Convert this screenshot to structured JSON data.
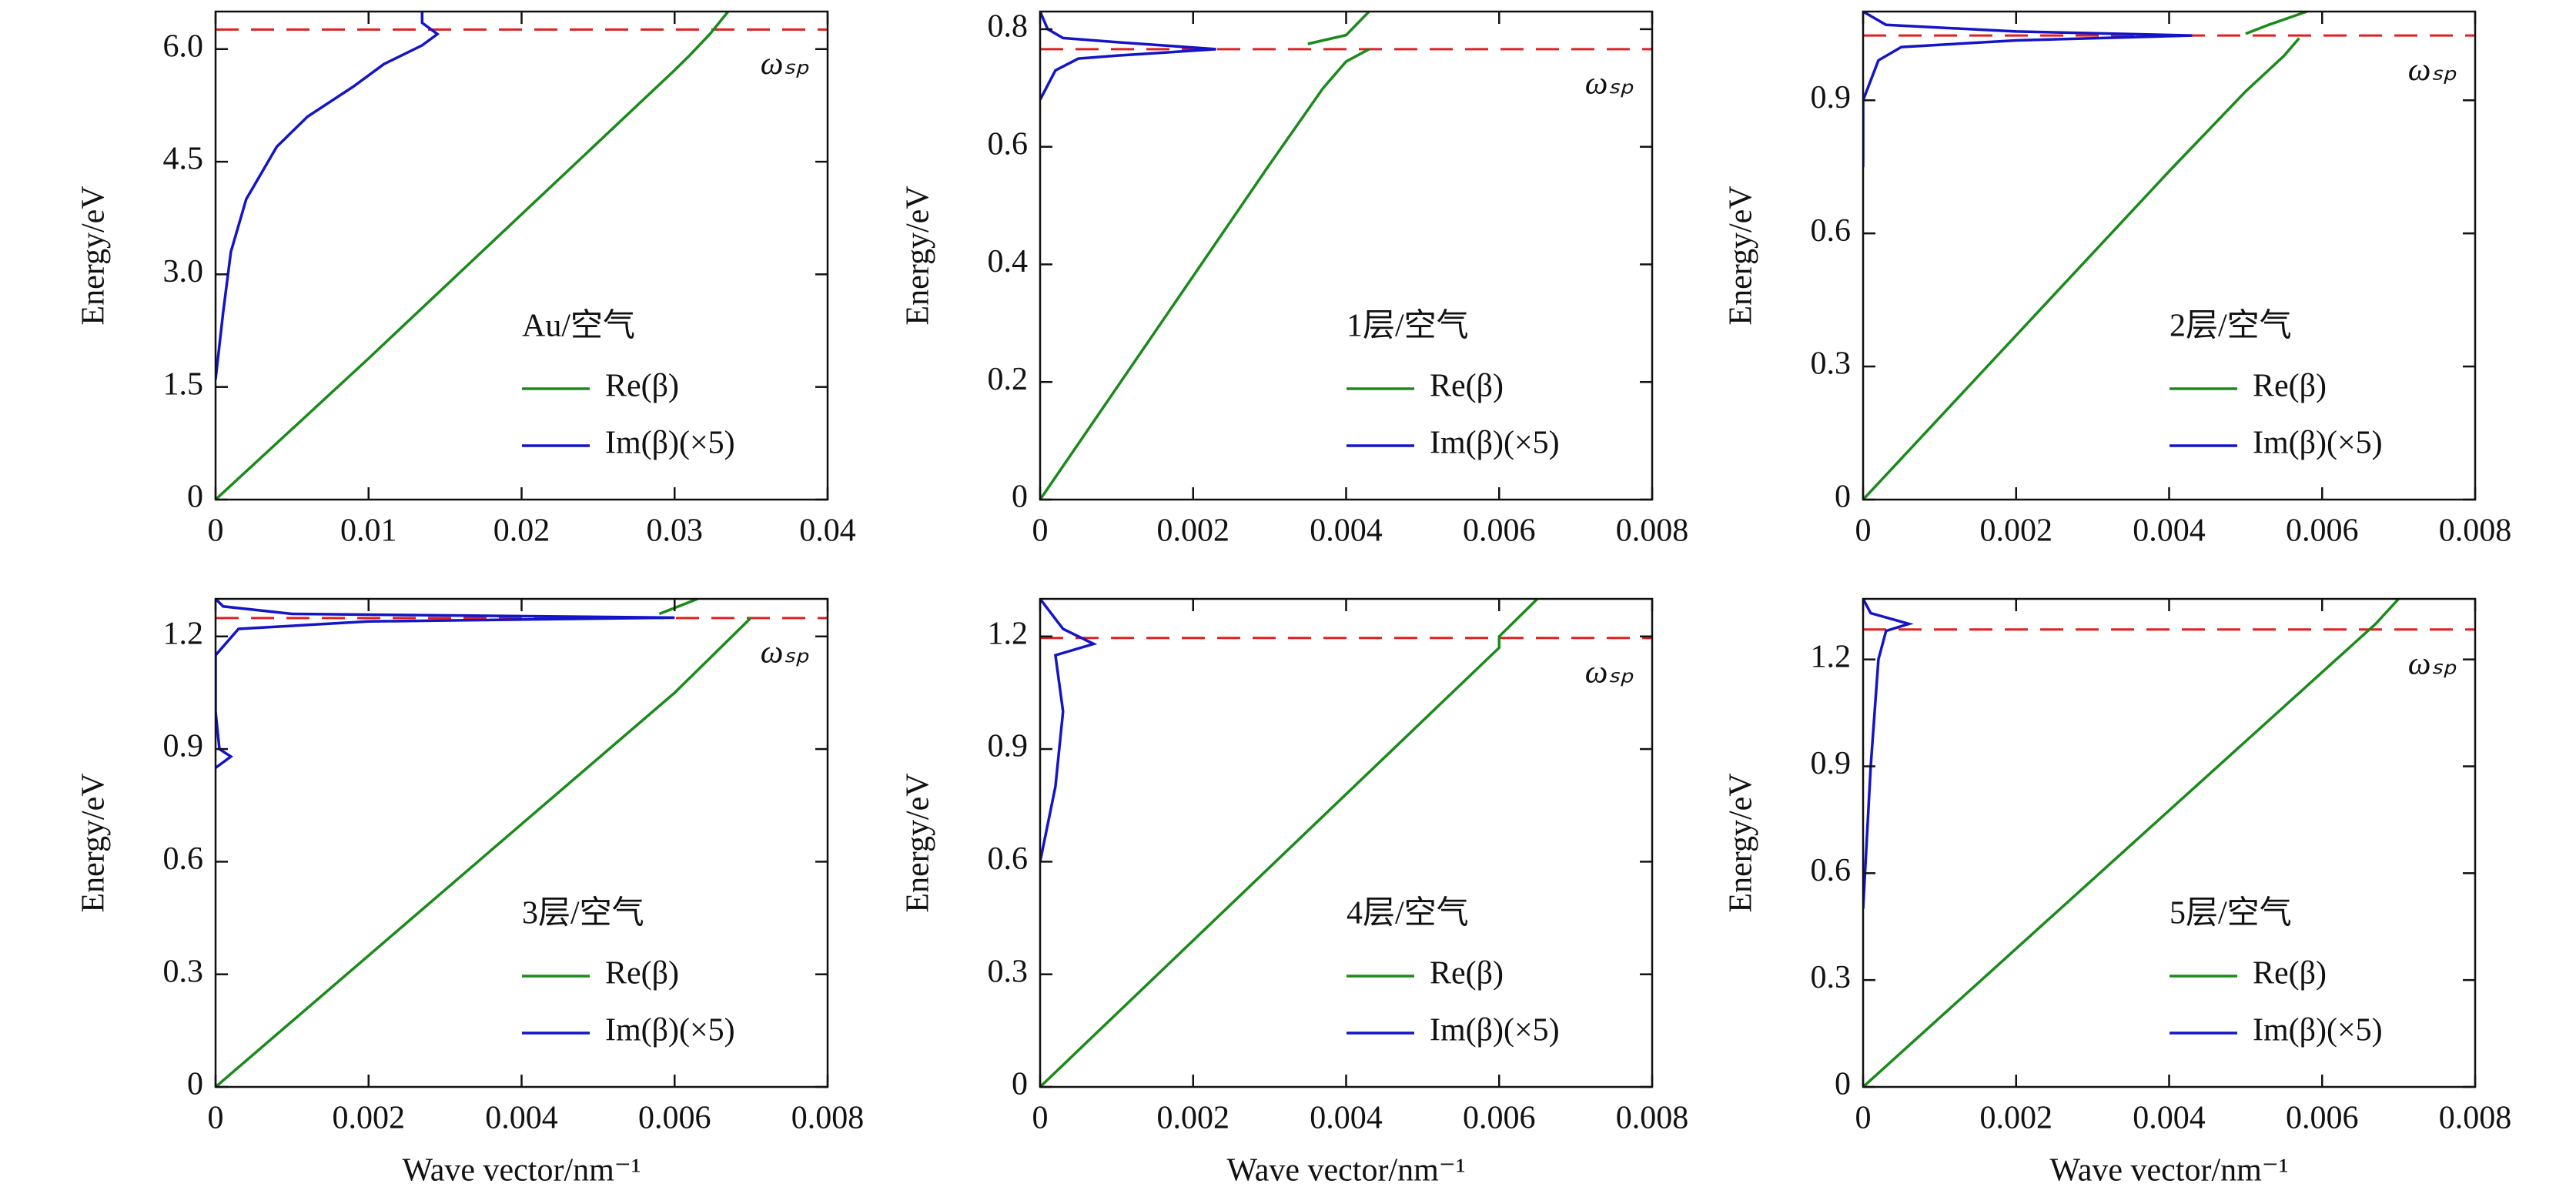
{
  "chart_data": [
    {
      "type": "line",
      "annotation": "Au/空气",
      "ylabel": "Energy/eV",
      "xlim": [
        0,
        0.04
      ],
      "xticks": [
        0,
        0.01,
        0.02,
        0.03,
        0.04
      ],
      "ylim": [
        0,
        6.5
      ],
      "yticks": [
        0,
        1.5,
        {
          "value": 3,
          "label": "3.0"
        },
        4.5,
        {
          "value": 6,
          "label": "6.0"
        }
      ],
      "reference_line": {
        "value": 6.26,
        "label": "ωₛₚ",
        "color": "#e02020"
      },
      "series": [
        {
          "name": "Re(β)",
          "color": "#1a8a1a",
          "x": [
            0,
            0.01,
            0.02,
            0.03,
            0.031,
            0.0323,
            0.0335
          ],
          "values": [
            0,
            1.88,
            3.8,
            5.72,
            5.92,
            6.2,
            6.5
          ]
        },
        {
          "name": "Im(β)(×5)",
          "color": "#1414c8",
          "x": [
            0,
            0.0005,
            0.001,
            0.002,
            0.004,
            0.006,
            0.009,
            0.011,
            0.0135,
            0.0145,
            0.0135,
            0.0135
          ],
          "values": [
            1.6,
            2.5,
            3.3,
            4.0,
            4.7,
            5.1,
            5.5,
            5.8,
            6.05,
            6.2,
            6.35,
            6.5
          ]
        }
      ]
    },
    {
      "type": "line",
      "annotation": "1层/空气",
      "ylabel": "Energy/eV",
      "xlim": [
        0,
        0.008
      ],
      "xticks": [
        0,
        0.002,
        0.004,
        0.006,
        0.008
      ],
      "ylim": [
        0,
        0.83
      ],
      "yticks": [
        0,
        0.2,
        0.4,
        0.6,
        0.8
      ],
      "reference_line": {
        "value": 0.766,
        "label": "ωₛₚ",
        "color": "#e02020"
      },
      "series": [
        {
          "name": "Re(β)",
          "color": "#1a8a1a",
          "x": [
            0,
            0.001,
            0.002,
            0.003,
            0.0037,
            0.004,
            0.0043,
            null,
            0.0035,
            0.004,
            0.0043
          ],
          "values": [
            0,
            0.19,
            0.38,
            0.57,
            0.7,
            0.745,
            0.766,
            null,
            0.775,
            0.79,
            0.83
          ]
        },
        {
          "name": "Im(β)(×5)",
          "color": "#1414c8",
          "x": [
            0,
            0.0002,
            0.0005,
            0.001,
            0.0023,
            0.001,
            0.0003,
            0.0001,
            0
          ],
          "values": [
            0.68,
            0.73,
            0.75,
            0.755,
            0.766,
            0.778,
            0.785,
            0.8,
            0.83
          ]
        }
      ]
    },
    {
      "type": "line",
      "annotation": "2层/空气",
      "ylabel": "Energy/eV",
      "xlim": [
        0,
        0.008
      ],
      "xticks": [
        0,
        0.002,
        0.004,
        0.006,
        0.008
      ],
      "ylim": [
        0,
        1.1
      ],
      "yticks": [
        0,
        0.3,
        0.6,
        0.9
      ],
      "reference_line": {
        "value": 1.046,
        "label": "ωₛₚ",
        "color": "#e02020"
      },
      "series": [
        {
          "name": "Re(β)",
          "color": "#1a8a1a",
          "x": [
            0,
            0.002,
            0.004,
            0.005,
            0.0055,
            0.0057,
            null,
            0.005,
            0.0053,
            0.0058
          ],
          "values": [
            0,
            0.37,
            0.74,
            0.92,
            1.0,
            1.04,
            null,
            1.05,
            1.07,
            1.1
          ]
        },
        {
          "name": "Im(β)(×5)",
          "color": "#1414c8",
          "x": [
            0,
            0,
            0.0002,
            0.0005,
            0.002,
            0.0043,
            0.002,
            0.0003,
            0
          ],
          "values": [
            0.75,
            0.9,
            0.99,
            1.02,
            1.035,
            1.046,
            1.055,
            1.07,
            1.1
          ]
        }
      ]
    },
    {
      "type": "line",
      "annotation": "3层/空气",
      "ylabel": "Energy/eV",
      "xlabel": "Wave vector/nm⁻¹",
      "xlim": [
        0,
        0.008
      ],
      "xticks": [
        0,
        0.002,
        0.004,
        0.006,
        0.008
      ],
      "ylim": [
        0,
        1.3
      ],
      "yticks": [
        0,
        0.3,
        0.6,
        0.9,
        1.2
      ],
      "reference_line": {
        "value": 1.249,
        "label": "ωₛₚ",
        "color": "#e02020"
      },
      "series": [
        {
          "name": "Re(β)",
          "color": "#1a8a1a",
          "x": [
            0,
            0.002,
            0.004,
            0.006,
            0.0065,
            0.007,
            null,
            0.0058,
            0.0063
          ],
          "values": [
            0,
            0.35,
            0.7,
            1.05,
            1.15,
            1.25,
            null,
            1.26,
            1.3
          ]
        },
        {
          "name": "Im(β)(×5)",
          "color": "#1414c8",
          "x": [
            0,
            0.0002,
            5e-05,
            0,
            0,
            0.0003,
            0.002,
            0.006,
            0.001,
            0.0001,
            0
          ],
          "values": [
            0.85,
            0.88,
            0.9,
            1.0,
            1.15,
            1.22,
            1.24,
            1.25,
            1.26,
            1.28,
            1.3
          ]
        }
      ]
    },
    {
      "type": "line",
      "annotation": "4层/空气",
      "ylabel": "Energy/eV",
      "xlabel": "Wave vector/nm⁻¹",
      "xlim": [
        0,
        0.008
      ],
      "xticks": [
        0,
        0.002,
        0.004,
        0.006,
        0.008
      ],
      "ylim": [
        0,
        1.3
      ],
      "yticks": [
        0,
        0.3,
        0.6,
        0.9,
        1.2
      ],
      "reference_line": {
        "value": 1.196,
        "label": "ωₛₚ",
        "color": "#e02020"
      },
      "series": [
        {
          "name": "Re(β)",
          "color": "#1a8a1a",
          "x": [
            0,
            0.006,
            0.006,
            0.0065
          ],
          "values": [
            0,
            1.17,
            1.2,
            1.3
          ]
        },
        {
          "name": "Im(β)(×5)",
          "color": "#1414c8",
          "x": [
            0,
            0.0002,
            0.0003,
            0.0002,
            0.0007,
            0.0003,
            0
          ],
          "values": [
            0.6,
            0.8,
            1.0,
            1.15,
            1.18,
            1.22,
            1.3
          ]
        }
      ]
    },
    {
      "type": "line",
      "annotation": "5层/空气",
      "ylabel": "Energy/eV",
      "xlabel": "Wave vector/nm⁻¹",
      "xlim": [
        0,
        0.008
      ],
      "xticks": [
        0,
        0.002,
        0.004,
        0.006,
        0.008
      ],
      "ylim": [
        0,
        1.37
      ],
      "yticks": [
        0,
        0.3,
        0.6,
        0.9,
        1.2
      ],
      "reference_line": {
        "value": 1.284,
        "label": "ωₛₚ",
        "color": "#e02020"
      },
      "series": [
        {
          "name": "Re(β)",
          "color": "#1a8a1a",
          "x": [
            0,
            0.0067,
            0.007
          ],
          "values": [
            0,
            1.3,
            1.37
          ]
        },
        {
          "name": "Im(β)(×5)",
          "color": "#1414c8",
          "x": [
            0,
            0.0001,
            0.0002,
            0.0003,
            0.0006,
            0.0001,
            0
          ],
          "values": [
            0.5,
            0.9,
            1.2,
            1.28,
            1.3,
            1.33,
            1.37
          ]
        }
      ]
    }
  ]
}
